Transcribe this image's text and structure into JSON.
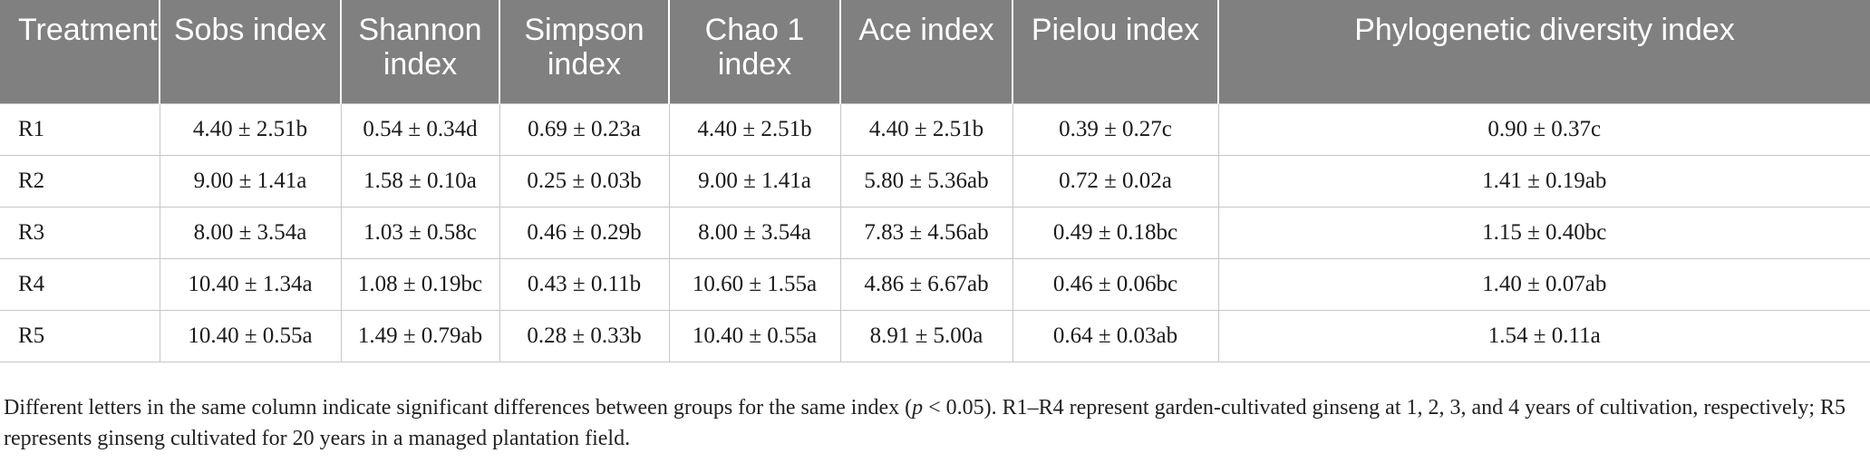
{
  "table": {
    "headers": [
      "Treatment",
      "Sobs index",
      "Shannon index",
      "Simpson index",
      "Chao 1 index",
      "Ace index",
      "Pielou index",
      "Phylogenetic diversity index"
    ],
    "rows": [
      [
        "R1",
        "4.40 ± 2.51b",
        "0.54 ± 0.34d",
        "0.69 ± 0.23a",
        "4.40 ± 2.51b",
        "4.40 ± 2.51b",
        "0.39 ± 0.27c",
        "0.90 ± 0.37c"
      ],
      [
        "R2",
        "9.00 ± 1.41a",
        "1.58 ± 0.10a",
        "0.25 ± 0.03b",
        "9.00 ± 1.41a",
        "5.80 ± 5.36ab",
        "0.72 ± 0.02a",
        "1.41 ± 0.19ab"
      ],
      [
        "R3",
        "8.00 ± 3.54a",
        "1.03 ± 0.58c",
        "0.46 ± 0.29b",
        "8.00 ± 3.54a",
        "7.83 ± 4.56ab",
        "0.49 ± 0.18bc",
        "1.15 ± 0.40bc"
      ],
      [
        "R4",
        "10.40 ± 1.34a",
        "1.08 ± 0.19bc",
        "0.43 ± 0.11b",
        "10.60 ± 1.55a",
        "4.86 ± 6.67ab",
        "0.46 ± 0.06bc",
        "1.40 ± 0.07ab"
      ],
      [
        "R5",
        "10.40 ± 0.55a",
        "1.49 ± 0.79ab",
        "0.28 ± 0.33b",
        "10.40 ± 0.55a",
        "8.91 ± 5.00a",
        "0.64 ± 0.03ab",
        "1.54 ± 0.11a"
      ]
    ]
  },
  "footnote": {
    "part1": "Different letters in the same column indicate significant differences between groups for the same index (",
    "p_symbol": "p",
    "part2": " < 0.05). R1–R4 represent garden-cultivated ginseng at 1, 2, 3, and 4 years of cultivation, respectively; R5 represents ginseng cultivated for 20 years in a managed plantation field."
  },
  "colors": {
    "header_bg": "#808080",
    "header_text": "#ffffff",
    "grid_line": "#c6c6c6"
  }
}
